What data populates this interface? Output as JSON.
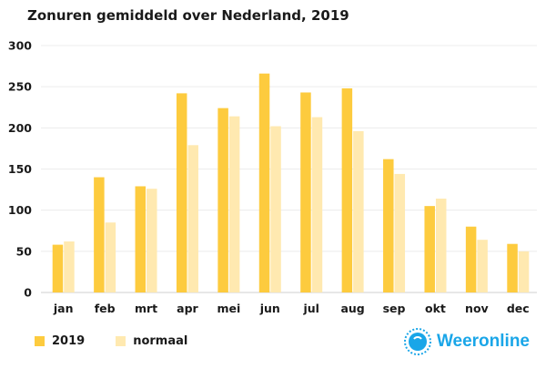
{
  "chart_data": {
    "type": "bar",
    "title": "Zonuren gemiddeld over Nederland, 2019",
    "categories": [
      "jan",
      "feb",
      "mrt",
      "apr",
      "mei",
      "jun",
      "jul",
      "aug",
      "sep",
      "okt",
      "nov",
      "dec"
    ],
    "series": [
      {
        "name": "2019",
        "color": "#FDCB3E",
        "values": [
          58,
          140,
          129,
          242,
          224,
          266,
          243,
          248,
          162,
          105,
          80,
          59
        ]
      },
      {
        "name": "normaal",
        "color": "#FFE9B0",
        "values": [
          62,
          85,
          126,
          179,
          214,
          202,
          213,
          196,
          144,
          114,
          64,
          50
        ]
      }
    ],
    "ylim": [
      0,
      300
    ],
    "yticks": [
      0,
      50,
      100,
      150,
      200,
      250,
      300
    ],
    "xlabel": "",
    "ylabel": "",
    "grid": true,
    "legend_position": "bottom-left"
  },
  "brand": {
    "name": "Weeronline",
    "logo": "sun-logo-icon"
  }
}
